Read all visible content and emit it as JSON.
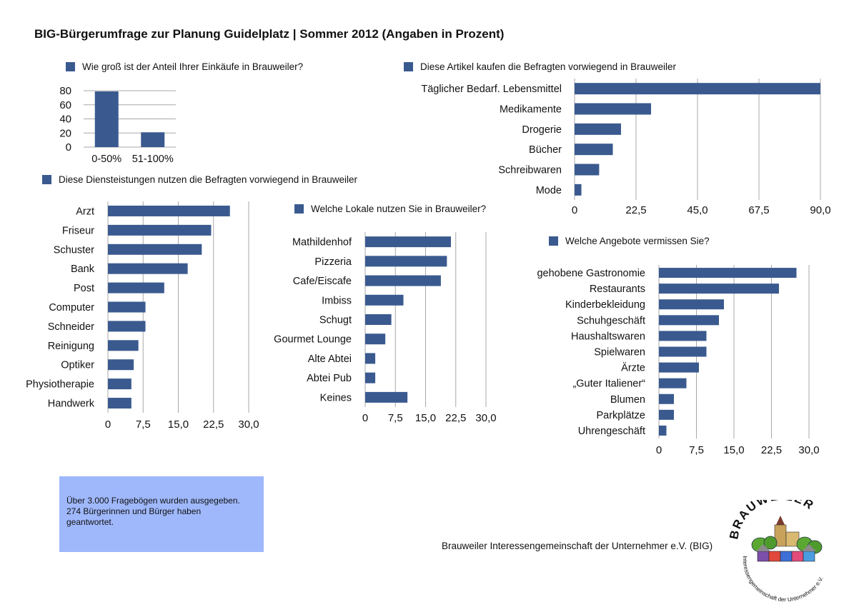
{
  "page": {
    "title": "BIG-Bürgerumfrage zur Planung Guidelplatz | Sommer 2012 (Angaben in Prozent)",
    "info_lines": [
      "Über 3.000 Fragebögen wurden ausgegeben.",
      "274 Bürgerinnen und Bürger haben",
      "geantwortet."
    ],
    "footer": "Brauweiler Interessengemeinschaft der Unternehmer e.V. (BIG)",
    "logo_text": "BRAUWEILER",
    "logo_subtext": "Interessengemeinschaft der Unternehmer e.V."
  },
  "colors": {
    "bar": "#3a5a8f",
    "grid": "#a8a8a8",
    "info_box": "#9fb8fc"
  },
  "chart_data": [
    {
      "id": "einkaeufe",
      "type": "bar",
      "orientation": "vertical",
      "title": "Wie groß ist der Anteil Ihrer Einkäufe in Brauweiler?",
      "categories": [
        "0-50%",
        "51-100%"
      ],
      "values": [
        79,
        21
      ],
      "ylim": [
        0,
        80
      ],
      "yticks": [
        "0",
        "20",
        "40",
        "60",
        "80"
      ],
      "grid": true
    },
    {
      "id": "artikel",
      "type": "bar",
      "orientation": "horizontal",
      "title": "Diese Artikel kaufen die Befragten vorwiegend in Brauweiler",
      "categories": [
        "Täglicher Bedarf. Lebensmittel",
        "Medikamente",
        "Drogerie",
        "Bücher",
        "Schreibwaren",
        "Mode"
      ],
      "values": [
        90,
        28,
        17,
        14,
        9,
        2.5
      ],
      "xlim": [
        0,
        90
      ],
      "xticks": [
        "0",
        "22,5",
        "45,0",
        "67,5",
        "90,0"
      ],
      "grid": true
    },
    {
      "id": "dienstleistungen",
      "type": "bar",
      "orientation": "horizontal",
      "title": "Diese Diensteistungen nutzen die Befragten vorwiegend in Brauweiler",
      "categories": [
        "Arzt",
        "Friseur",
        "Schuster",
        "Bank",
        "Post",
        "Computer",
        "Schneider",
        "Reinigung",
        "Optiker",
        "Physiotherapie",
        "Handwerk"
      ],
      "values": [
        26,
        22,
        20,
        17,
        12,
        8,
        8,
        6.5,
        5.5,
        5,
        5
      ],
      "xlim": [
        0,
        30
      ],
      "xticks": [
        "0",
        "7,5",
        "15,0",
        "22,5",
        "30,0"
      ],
      "grid": true
    },
    {
      "id": "lokale",
      "type": "bar",
      "orientation": "horizontal",
      "title": "Welche Lokale nutzen Sie in Brauweiler?",
      "categories": [
        "Mathildenhof",
        "Pizzeria",
        "Cafe/Eiscafe",
        "Imbiss",
        "Schugt",
        "Gourmet Lounge",
        "Alte Abtei",
        "Abtei Pub",
        "Keines"
      ],
      "values": [
        21.3,
        20.3,
        18.8,
        9.5,
        6.5,
        5,
        2.5,
        2.5,
        10.5
      ],
      "xlim": [
        0,
        30
      ],
      "xticks": [
        "0",
        "7,5",
        "15,0",
        "22,5",
        "30,0"
      ],
      "grid": true
    },
    {
      "id": "angebote",
      "type": "bar",
      "orientation": "horizontal",
      "title": "Welche Angebote vermissen Sie?",
      "categories": [
        "gehobene Gastronomie",
        "Restaurants",
        "Kinderbekleidung",
        "Schuhgeschäft",
        "Haushaltswaren",
        "Spielwaren",
        "Ärzte",
        "„Guter Italiener“",
        "Blumen",
        "Parkplätze",
        "Uhrengeschäft"
      ],
      "values": [
        27.5,
        24,
        13,
        12,
        9.5,
        9.5,
        8,
        5.5,
        3,
        3,
        1.5
      ],
      "xlim": [
        0,
        30
      ],
      "xticks": [
        "0",
        "7,5",
        "15,0",
        "22,5",
        "30,0"
      ],
      "grid": true
    }
  ]
}
